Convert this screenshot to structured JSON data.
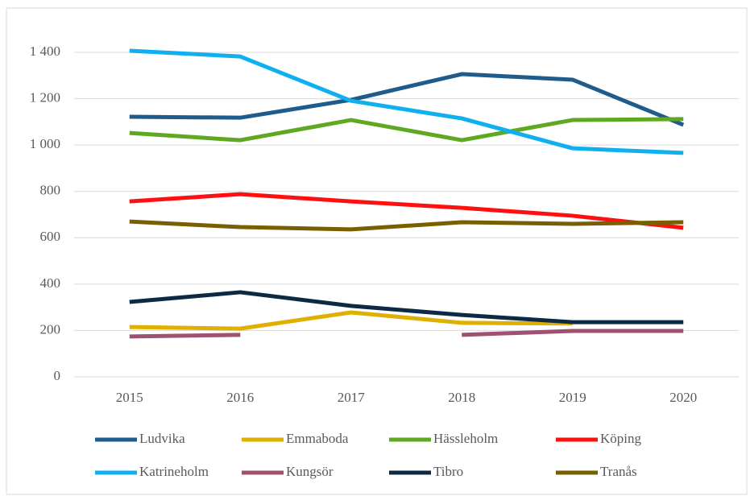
{
  "chart_data": {
    "type": "line",
    "categories": [
      "2015",
      "2016",
      "2017",
      "2018",
      "2019",
      "2020"
    ],
    "series": [
      {
        "name": "Ludvika",
        "color": "#1f5c8c",
        "values": [
          1122,
          1118,
          1195,
          1306,
          1282,
          1087
        ]
      },
      {
        "name": "Emmaboda",
        "color": "#e0b000",
        "values": [
          215,
          208,
          278,
          233,
          230,
          null
        ]
      },
      {
        "name": "Hässleholm",
        "color": "#5fa821",
        "values": [
          1052,
          1021,
          1108,
          1021,
          1108,
          1112
        ]
      },
      {
        "name": "Köping",
        "color": "#ff1010",
        "values": [
          757,
          788,
          757,
          729,
          695,
          643
        ]
      },
      {
        "name": "Katrineholm",
        "color": "#10b0f0",
        "values": [
          1407,
          1382,
          1191,
          1115,
          986,
          966
        ]
      },
      {
        "name": "Kungsör",
        "color": "#a05070",
        "values": [
          174,
          181,
          null,
          181,
          198,
          198
        ]
      },
      {
        "name": "Tibro",
        "color": "#0c2a44",
        "values": [
          323,
          365,
          306,
          267,
          236,
          236
        ]
      },
      {
        "name": "Tranås",
        "color": "#7a5f00",
        "values": [
          670,
          646,
          636,
          667,
          660,
          667
        ]
      }
    ],
    "ylim": [
      0,
      1400
    ],
    "yticks": [
      0,
      200,
      400,
      600,
      800,
      {
        "value": 1000,
        "label": "1 000"
      },
      {
        "value": 1200,
        "label": "1 200"
      },
      {
        "value": 1400,
        "label": "1 400"
      }
    ],
    "grid": true,
    "legend": "bottom"
  }
}
